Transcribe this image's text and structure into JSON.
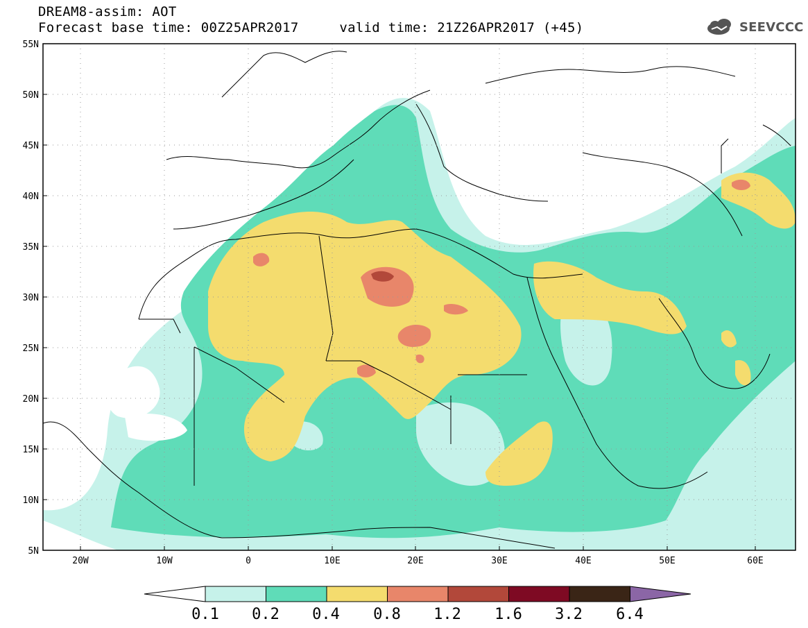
{
  "title": {
    "line1": "DREAM8-assim: AOT",
    "line2": "Forecast base time: 00Z25APR2017     valid time: 21Z26APR2017 (+45)"
  },
  "logo": {
    "text": "SEEVCCC"
  },
  "axes": {
    "lat_labels": [
      "55N",
      "50N",
      "45N",
      "40N",
      "35N",
      "30N",
      "25N",
      "20N",
      "15N",
      "10N",
      "5N"
    ],
    "lon_labels": [
      "20W",
      "10W",
      "0",
      "10E",
      "20E",
      "30E",
      "40E",
      "50E",
      "60E"
    ]
  },
  "colorbar": {
    "labels": [
      "0.1",
      "0.2",
      "0.4",
      "0.8",
      "1.2",
      "1.6",
      "3.2",
      "6.4"
    ],
    "colors": [
      "#c6f2ea",
      "#5fdcb8",
      "#f4dc6e",
      "#e8866a",
      "#b2483a",
      "#7e0a23",
      "#3a2516",
      "#8b66a6"
    ]
  },
  "map_colors": {
    "light_cyan": "#c6f2ea",
    "green": "#5fdcb8",
    "yellow": "#f4dc6e",
    "salmon": "#e8866a",
    "brown": "#b2483a"
  }
}
